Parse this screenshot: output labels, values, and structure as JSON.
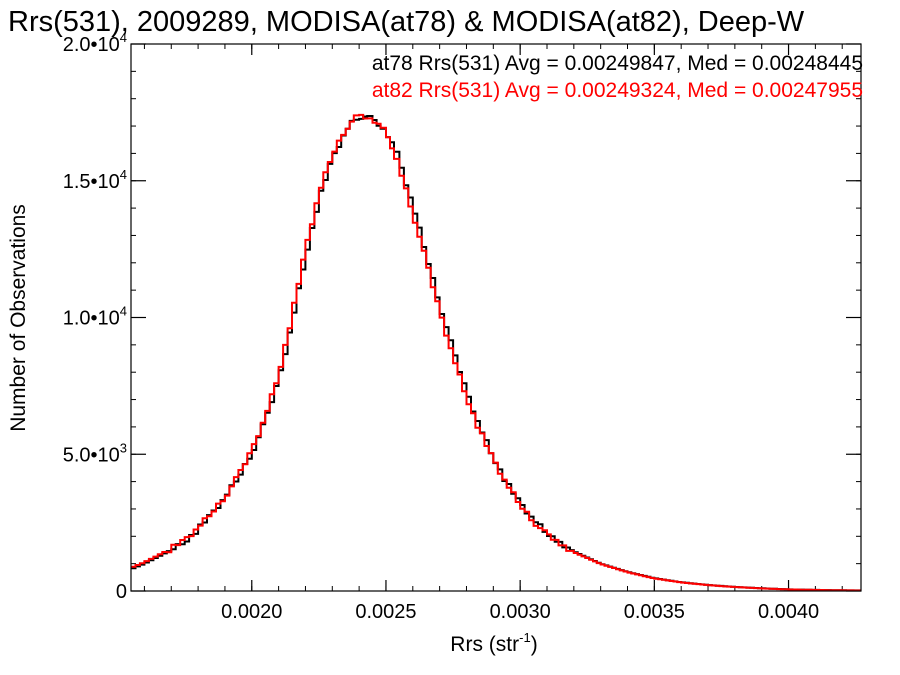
{
  "chart_data": {
    "type": "line",
    "title": "Rrs(531), 2009289, MODISA(at78) & MODISA(at82), Deep-W",
    "xlabel": "Rrs (str",
    "xlabel_sup": "-1",
    "xlabel_close": ")",
    "ylabel": "Number of Observations",
    "xlim": [
      0.00155,
      0.00427
    ],
    "ylim": [
      0,
      20000
    ],
    "xticks": [
      {
        "value": 0.002,
        "label": "0.0020"
      },
      {
        "value": 0.0025,
        "label": "0.0025"
      },
      {
        "value": 0.003,
        "label": "0.0030"
      },
      {
        "value": 0.0035,
        "label": "0.0035"
      },
      {
        "value": 0.004,
        "label": "0.0040"
      }
    ],
    "xminor_step": 0.0001,
    "yticks": [
      {
        "value": 0,
        "label": "0",
        "exp": ""
      },
      {
        "value": 5000,
        "label": "5.0•10",
        "exp": "3"
      },
      {
        "value": 10000,
        "label": "1.0•10",
        "exp": "4"
      },
      {
        "value": 15000,
        "label": "1.5•10",
        "exp": "4"
      },
      {
        "value": 20000,
        "label": "2.0•10",
        "exp": "4"
      }
    ],
    "yminor_step": 1000,
    "legend_placement": "top-right",
    "series": [
      {
        "name": "at78 Rrs(531) Avg = 0.00249847, Med = 0.00248445",
        "color": "#000000",
        "x": [
          0.00155,
          0.0016,
          0.00165,
          0.0017,
          0.00175,
          0.0018,
          0.00185,
          0.0019,
          0.00195,
          0.002,
          0.00205,
          0.0021,
          0.00215,
          0.0022,
          0.00225,
          0.0023,
          0.00235,
          0.00238,
          0.0024,
          0.00243,
          0.00245,
          0.00248,
          0.0025,
          0.00253,
          0.00255,
          0.0026,
          0.00265,
          0.0027,
          0.00275,
          0.0028,
          0.00285,
          0.0029,
          0.00295,
          0.003,
          0.00305,
          0.0031,
          0.0032,
          0.0033,
          0.0034,
          0.0035,
          0.0036,
          0.0037,
          0.0038,
          0.0039,
          0.004,
          0.0041,
          0.0042,
          0.00427
        ],
        "values": [
          800,
          1000,
          1250,
          1500,
          1800,
          2250,
          2800,
          3400,
          4150,
          5050,
          6200,
          7700,
          9800,
          12200,
          14300,
          15800,
          16800,
          17200,
          17350,
          17350,
          17250,
          17050,
          16800,
          16250,
          15700,
          14100,
          12300,
          10500,
          8800,
          7300,
          6000,
          4900,
          3950,
          3200,
          2600,
          2100,
          1450,
          1000,
          700,
          470,
          320,
          220,
          150,
          100,
          60,
          40,
          25,
          20
        ]
      },
      {
        "name": "at82 Rrs(531) Avg = 0.00249324, Med = 0.00247955",
        "color": "#ff0000",
        "x": [
          0.00155,
          0.0016,
          0.00165,
          0.0017,
          0.00175,
          0.0018,
          0.00185,
          0.0019,
          0.00195,
          0.002,
          0.00205,
          0.0021,
          0.00215,
          0.0022,
          0.00225,
          0.0023,
          0.00235,
          0.00238,
          0.0024,
          0.00243,
          0.00245,
          0.00248,
          0.0025,
          0.00253,
          0.00255,
          0.0026,
          0.00265,
          0.0027,
          0.00275,
          0.0028,
          0.00285,
          0.0029,
          0.00295,
          0.003,
          0.00305,
          0.0031,
          0.0032,
          0.0033,
          0.0034,
          0.0035,
          0.0036,
          0.0037,
          0.0038,
          0.0039,
          0.004,
          0.0041,
          0.0042,
          0.00427
        ],
        "values": [
          850,
          1050,
          1300,
          1550,
          1850,
          2300,
          2850,
          3450,
          4200,
          5150,
          6350,
          7900,
          10050,
          12450,
          14500,
          15950,
          16900,
          17250,
          17400,
          17350,
          17250,
          17000,
          16700,
          16100,
          15500,
          13850,
          12050,
          10250,
          8600,
          7100,
          5850,
          4800,
          3900,
          3150,
          2550,
          2050,
          1420,
          990,
          690,
          460,
          315,
          215,
          145,
          95,
          58,
          38,
          24,
          18
        ]
      }
    ]
  }
}
